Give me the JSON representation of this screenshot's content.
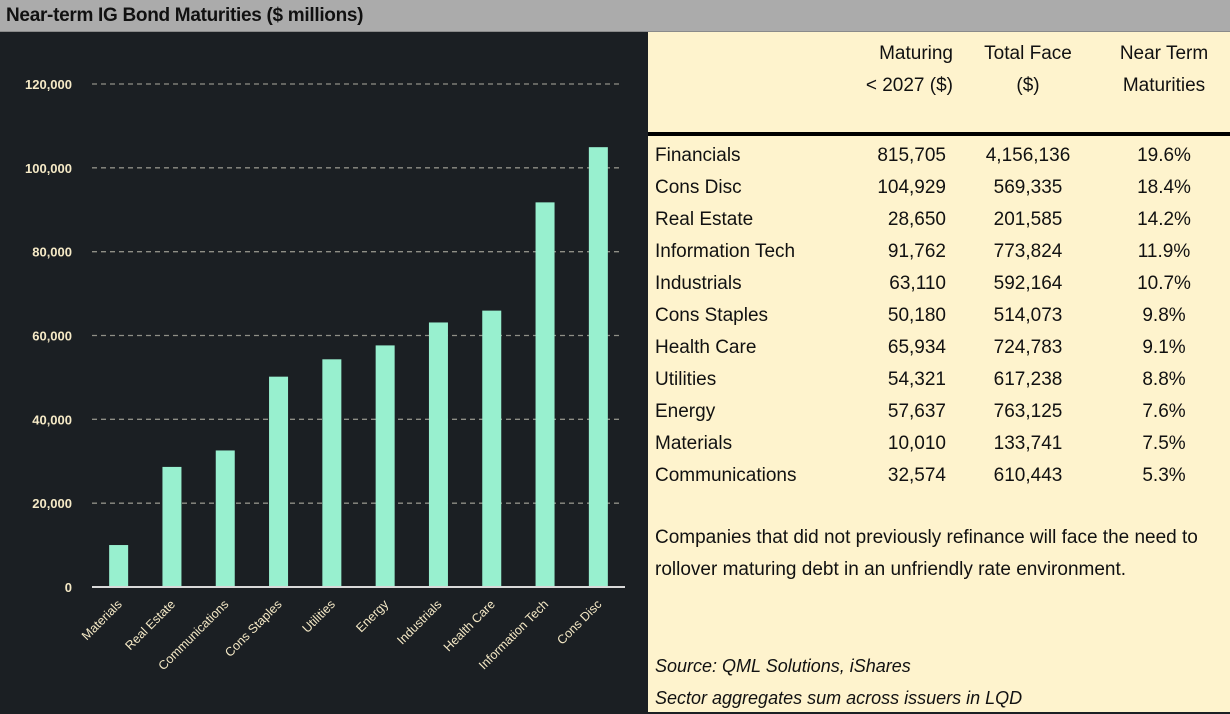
{
  "title": "Near-term IG Bond Maturities ($ millions)",
  "chart_data": {
    "type": "bar",
    "title": "Near-term IG Bond Maturities ($ millions)",
    "categories": [
      "Materials",
      "Real Estate",
      "Communications",
      "Cons Staples",
      "Utilities",
      "Energy",
      "Industrials",
      "Health Care",
      "Information Tech",
      "Cons Disc"
    ],
    "values": [
      10010,
      28650,
      32574,
      50180,
      54321,
      57637,
      63110,
      65934,
      91762,
      104929
    ],
    "ylim": [
      0,
      120000
    ],
    "yticks": [
      0,
      20000,
      40000,
      60000,
      80000,
      100000,
      120000
    ],
    "ytick_labels": [
      "0",
      "20,000",
      "40,000",
      "60,000",
      "80,000",
      "100,000",
      "120,000"
    ],
    "grid": true,
    "bar_color": "#98f0cf",
    "xlabel": "",
    "ylabel": ""
  },
  "table": {
    "headers": [
      [
        "Maturing",
        "< 2027 ($)"
      ],
      [
        "Total Face",
        "($)"
      ],
      [
        "Near Term",
        "Maturities"
      ]
    ],
    "rows": [
      [
        "Financials",
        "815,705",
        "4,156,136",
        "19.6%"
      ],
      [
        "Cons Disc",
        "104,929",
        "569,335",
        "18.4%"
      ],
      [
        "Real Estate",
        "28,650",
        "201,585",
        "14.2%"
      ],
      [
        "Information Tech",
        "91,762",
        "773,824",
        "11.9%"
      ],
      [
        "Industrials",
        "63,110",
        "592,164",
        "10.7%"
      ],
      [
        "Cons Staples",
        "50,180",
        "514,073",
        "9.8%"
      ],
      [
        "Health Care",
        "65,934",
        "724,783",
        "9.1%"
      ],
      [
        "Utilities",
        "54,321",
        "617,238",
        "8.8%"
      ],
      [
        "Energy",
        "57,637",
        "763,125",
        "7.6%"
      ],
      [
        "Materials",
        "10,010",
        "133,741",
        "7.5%"
      ],
      [
        "Communications",
        "32,574",
        "610,443",
        "5.3%"
      ]
    ]
  },
  "note": "Companies that did not previously refinance will  face the need to rollover maturing debt in an unfriendly rate environment.",
  "source": [
    "Source: QML Solutions, iShares",
    "Sector aggregates sum across issuers in LQD"
  ]
}
